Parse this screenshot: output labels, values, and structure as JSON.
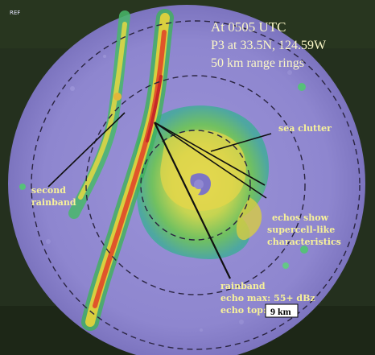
{
  "product_tag": "REF",
  "header": {
    "line1": "At 0505 UTC",
    "line2": "P3 at 33.5N, 124.59W",
    "line3": "50 km range rings"
  },
  "annotations": {
    "sea_clutter": "sea clutter",
    "second_rainband_1": "second",
    "second_rainband_2": "rainband",
    "supercell_1": "echos show",
    "supercell_2": "supercell-like",
    "supercell_3": "characteristics",
    "rainband_1": "rainband",
    "rainband_2": "echo max: 55+ dBz",
    "rainband_3": "echo top:",
    "echo_top_value": "9 km"
  },
  "colors": {
    "background": "#1e2a1a",
    "radar_disc": "#8f86cf",
    "annotation_text": "#f7f19a",
    "ring_color": "#2a2440"
  }
}
